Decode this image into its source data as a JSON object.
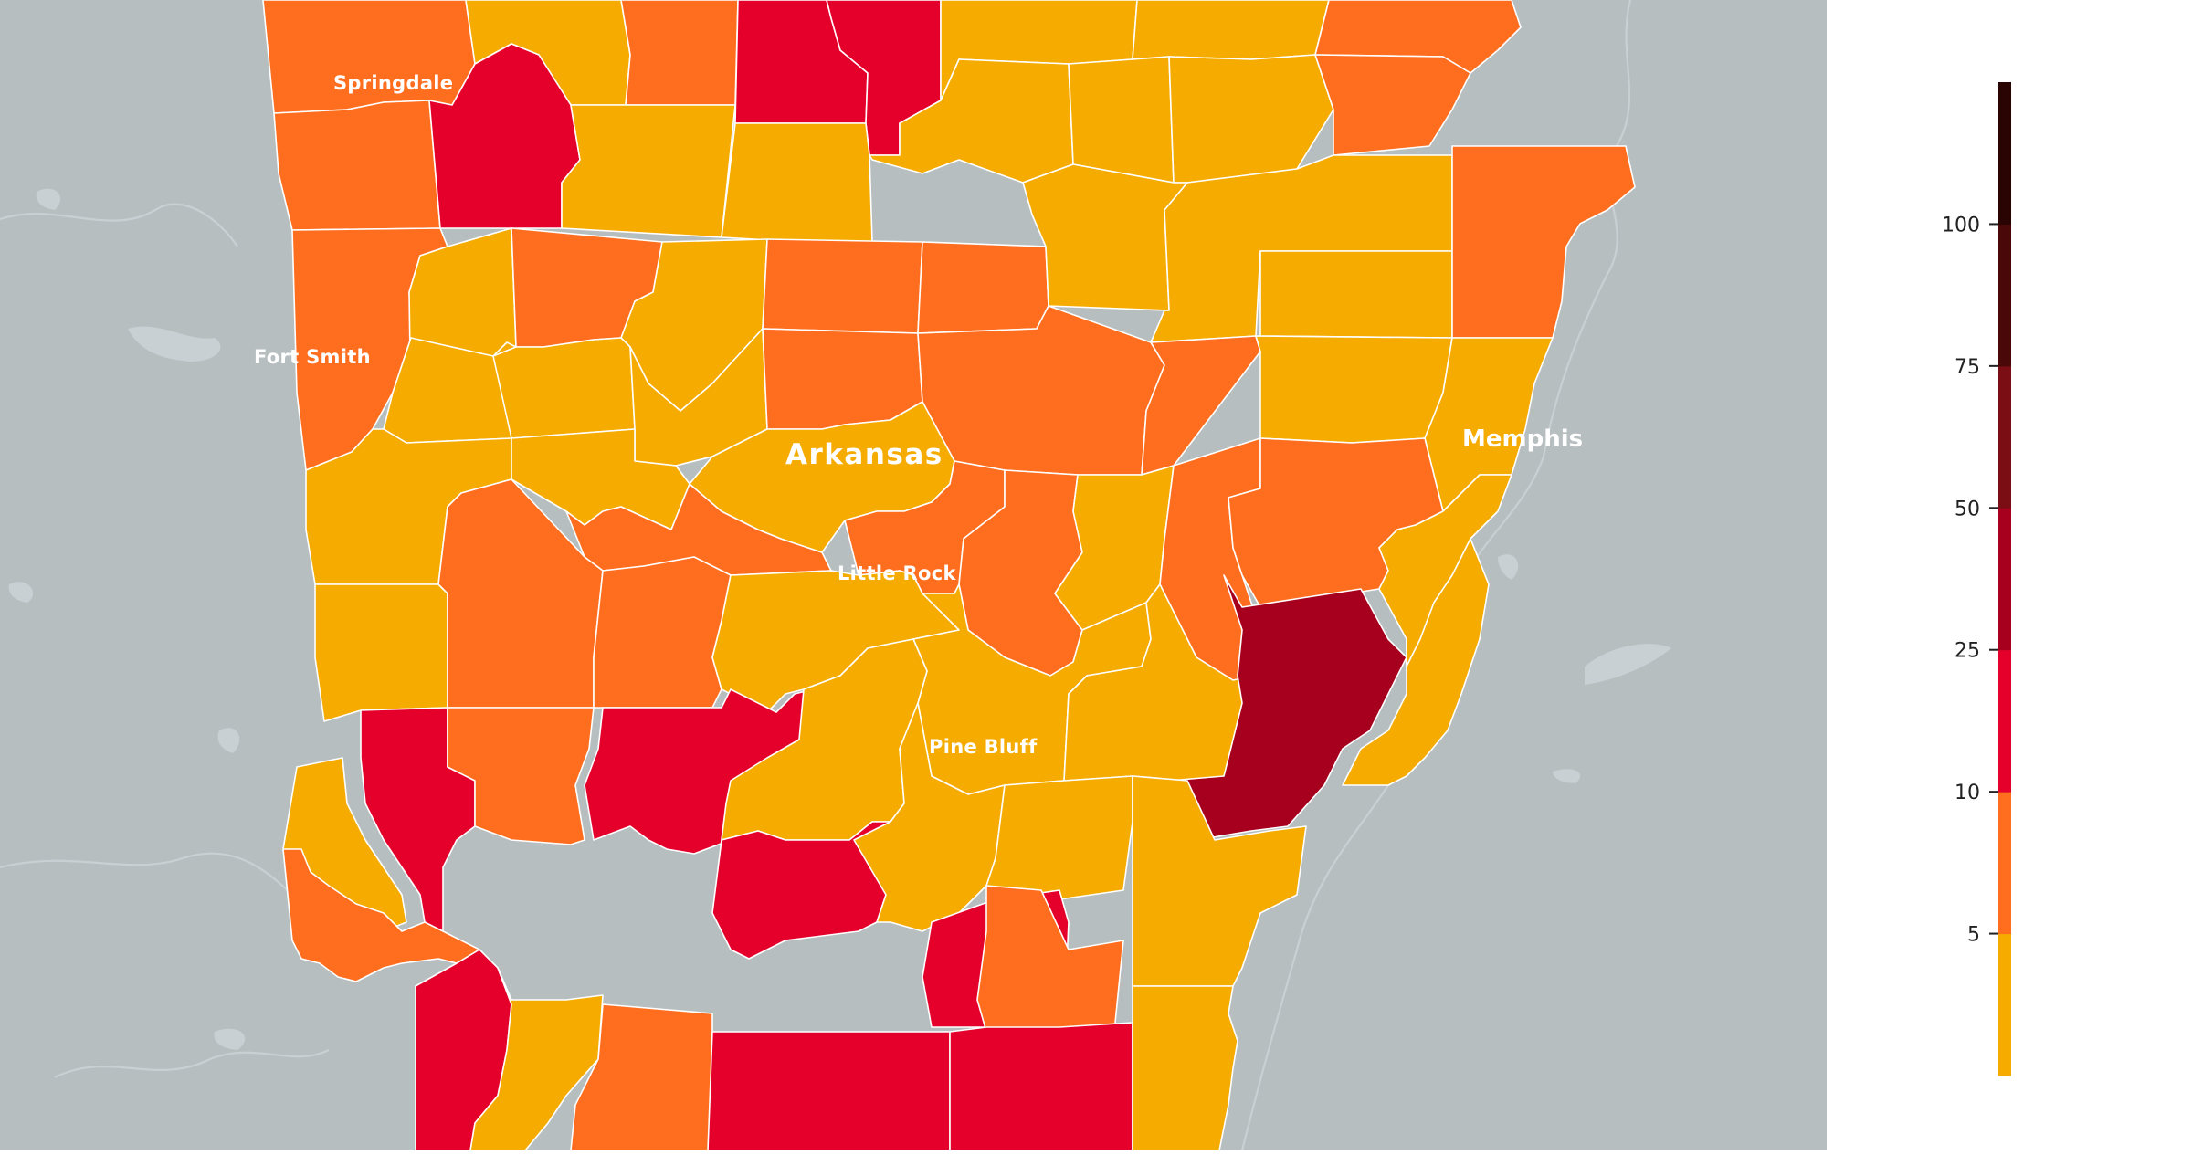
{
  "map": {
    "state_label": "Arkansas",
    "cities": {
      "springdale": "Springdale",
      "fort_smith": "Fort Smith",
      "little_rock": "Little Rock",
      "pine_bluff": "Pine Bluff",
      "memphis": "Memphis"
    },
    "background_color": "#b7bec0",
    "water_color": "#c9d0d3"
  },
  "legend": {
    "type": "color-scale",
    "ticks": [
      "100",
      "75",
      "50",
      "25",
      "10",
      "5"
    ],
    "bins": [
      {
        "range": "0-5",
        "color": "#f5ab00"
      },
      {
        "range": "5-10",
        "color": "#ff6e1f"
      },
      {
        "range": "10-25",
        "color": "#e4002b"
      },
      {
        "range": "25-50",
        "color": "#a6001e"
      },
      {
        "range": "50-75",
        "color": "#7a0e14"
      },
      {
        "range": "75-100",
        "color": "#4a0808"
      },
      {
        "range": "100+",
        "color": "#2a0303"
      }
    ]
  }
}
